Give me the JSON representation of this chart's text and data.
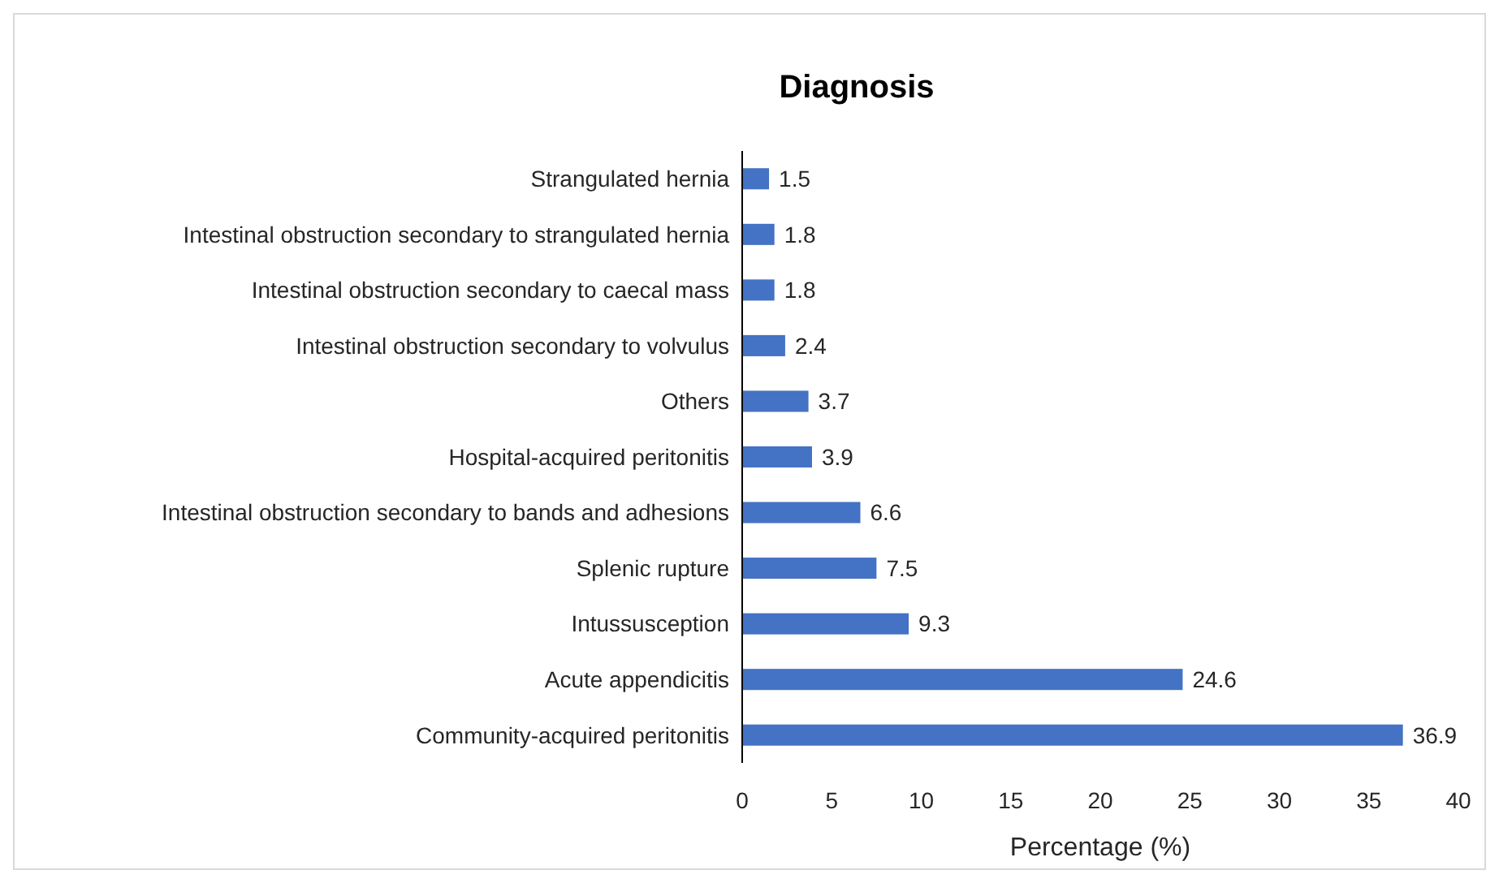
{
  "chart_data": {
    "type": "bar",
    "orientation": "horizontal",
    "title": "Diagnosis",
    "xlabel": "Percentage (%)",
    "categories": [
      "Strangulated hernia",
      "Intestinal obstruction secondary to strangulated hernia",
      "Intestinal obstruction secondary to caecal mass",
      "Intestinal obstruction secondary to volvulus",
      "Others",
      "Hospital-acquired peritonitis",
      "Intestinal obstruction secondary to bands and adhesions",
      "Splenic rupture",
      "Intussusception",
      "Acute appendicitis",
      "Community-acquired peritonitis"
    ],
    "values": [
      1.5,
      1.8,
      1.8,
      2.4,
      3.7,
      3.9,
      6.6,
      7.5,
      9.3,
      24.6,
      36.9
    ],
    "color": "#4472c4",
    "data_labels": true,
    "xlim": [
      0,
      40
    ],
    "xticks": [
      0,
      5,
      10,
      15,
      20,
      25,
      30,
      35,
      40
    ],
    "grid": false
  }
}
